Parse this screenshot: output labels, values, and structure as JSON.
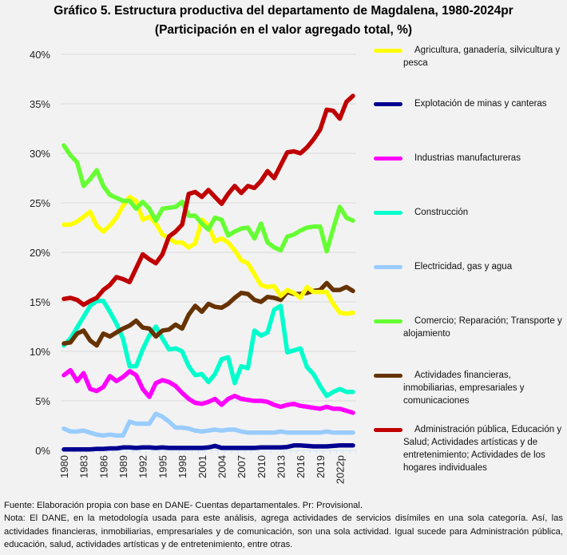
{
  "chart_data": {
    "type": "line",
    "title": "Gráfico 5. Estructura productiva del departamento de Magdalena, 1980-2024pr",
    "subtitle": "(Participación en el valor agregado total, %)",
    "xlabel": "",
    "ylabel": "",
    "ylim": [
      0,
      40
    ],
    "yticks": [
      "0%",
      "5%",
      "10%",
      "15%",
      "20%",
      "25%",
      "30%",
      "35%",
      "40%"
    ],
    "ytick_values": [
      0,
      5,
      10,
      15,
      20,
      25,
      30,
      35,
      40
    ],
    "grid": true,
    "legend_position": "right",
    "x": [
      1980,
      1981,
      1982,
      1983,
      1984,
      1985,
      1986,
      1987,
      1988,
      1989,
      1990,
      1991,
      1992,
      1993,
      1994,
      1995,
      1996,
      1997,
      1998,
      1999,
      2000,
      2001,
      2002,
      2003,
      2004,
      2005,
      2006,
      2007,
      2008,
      2009,
      2010,
      2011,
      2012,
      2013,
      2014,
      2015,
      2016,
      2017,
      2018,
      2019,
      2020,
      2021,
      2022,
      2023,
      2024
    ],
    "xtick_labels": [
      "1980",
      "1983",
      "1986",
      "1989",
      "1992",
      "1995",
      "1998",
      "2001",
      "2004",
      "2007",
      "2010",
      "2013",
      "2016",
      "2019",
      "2022p"
    ],
    "xtick_years": [
      1980,
      1983,
      1986,
      1989,
      1992,
      1995,
      1998,
      2001,
      2004,
      2007,
      2010,
      2013,
      2016,
      2019,
      2022
    ],
    "series": [
      {
        "name": "Agricultura, ganadería, silvicultura y pesca",
        "color": "#ffff00",
        "values": [
          22.8,
          22.8,
          23.1,
          23.6,
          24.1,
          22.7,
          22.1,
          22.7,
          23.5,
          24.7,
          25.6,
          25.2,
          23.3,
          23.6,
          22.9,
          21.8,
          21.4,
          21.0,
          21.0,
          20.5,
          20.9,
          23.3,
          22.7,
          21.1,
          21.4,
          21.0,
          20.2,
          19.2,
          18.9,
          17.8,
          16.7,
          16.5,
          16.6,
          15.6,
          16.2,
          15.9,
          15.4,
          16.5,
          16.0,
          16.0,
          16.0,
          14.8,
          13.9,
          13.8,
          13.9
        ]
      },
      {
        "name": "Explotación de minas y canteras",
        "color": "#000090",
        "values": [
          0.1,
          0.1,
          0.1,
          0.1,
          0.1,
          0.15,
          0.15,
          0.2,
          0.2,
          0.3,
          0.3,
          0.25,
          0.3,
          0.3,
          0.25,
          0.3,
          0.25,
          0.25,
          0.25,
          0.25,
          0.25,
          0.25,
          0.3,
          0.45,
          0.25,
          0.25,
          0.25,
          0.25,
          0.25,
          0.25,
          0.3,
          0.3,
          0.3,
          0.3,
          0.35,
          0.5,
          0.5,
          0.45,
          0.4,
          0.4,
          0.4,
          0.45,
          0.5,
          0.5,
          0.5
        ]
      },
      {
        "name": "Industrias manufactureras",
        "color": "#ff00ff",
        "values": [
          7.6,
          8.1,
          7.0,
          7.8,
          6.2,
          6.0,
          6.4,
          7.5,
          7.0,
          7.4,
          8.0,
          7.6,
          6.2,
          5.4,
          6.8,
          7.1,
          6.9,
          6.5,
          5.8,
          5.2,
          4.8,
          4.7,
          4.9,
          5.2,
          4.6,
          5.2,
          5.5,
          5.2,
          5.1,
          5.0,
          5.0,
          4.9,
          4.6,
          4.4,
          4.6,
          4.7,
          4.5,
          4.4,
          4.3,
          4.2,
          4.4,
          4.2,
          4.2,
          4.0,
          3.8
        ]
      },
      {
        "name": "Construcción",
        "color": "#00ffcc",
        "values": [
          10.6,
          11.3,
          12.4,
          13.5,
          14.6,
          15.1,
          15.1,
          14.0,
          12.8,
          11.3,
          8.5,
          8.5,
          10.2,
          11.6,
          12.5,
          11.3,
          10.2,
          10.3,
          10.0,
          8.5,
          7.6,
          7.7,
          6.9,
          7.7,
          9.2,
          9.4,
          6.8,
          8.5,
          8.3,
          12.1,
          11.6,
          11.9,
          14.2,
          14.6,
          9.9,
          10.1,
          10.3,
          8.4,
          7.7,
          6.5,
          5.5,
          5.9,
          6.2,
          5.9,
          5.9
        ]
      },
      {
        "name": "Electricidad, gas y agua",
        "color": "#99ccff",
        "values": [
          2.2,
          1.9,
          1.9,
          2.0,
          1.8,
          1.6,
          1.5,
          1.6,
          1.5,
          1.5,
          2.9,
          2.7,
          2.7,
          2.7,
          3.7,
          3.4,
          2.9,
          2.3,
          2.3,
          2.2,
          2.0,
          1.9,
          2.0,
          2.1,
          2.0,
          2.1,
          2.1,
          1.9,
          1.8,
          1.8,
          1.8,
          1.8,
          1.8,
          1.9,
          1.8,
          1.8,
          1.8,
          1.8,
          1.8,
          1.8,
          1.9,
          1.8,
          1.8,
          1.8,
          1.8
        ]
      },
      {
        "name": "Comercio; Reparación; Transporte y alojamiento",
        "color": "#66ff33",
        "values": [
          30.8,
          29.8,
          29.1,
          26.7,
          27.4,
          28.3,
          26.7,
          25.8,
          25.5,
          25.2,
          25.2,
          24.4,
          25.1,
          24.4,
          23.2,
          24.4,
          24.5,
          24.6,
          25.1,
          23.7,
          23.7,
          22.9,
          22.3,
          23.5,
          23.3,
          21.7,
          22.1,
          22.4,
          22.5,
          21.4,
          22.9,
          21.0,
          20.5,
          20.2,
          21.6,
          21.8,
          22.2,
          22.5,
          22.6,
          22.6,
          20.1,
          22.4,
          24.6,
          23.5,
          23.2
        ]
      },
      {
        "name": "Actividades financieras, inmobiliarias, empresariales y comunicaciones",
        "color": "#663300",
        "values": [
          10.8,
          10.9,
          11.8,
          12.1,
          11.1,
          10.6,
          11.8,
          11.5,
          11.9,
          12.3,
          12.6,
          13.1,
          12.4,
          12.3,
          11.5,
          12.1,
          12.2,
          12.7,
          12.3,
          13.7,
          14.6,
          14.0,
          14.8,
          14.5,
          14.4,
          14.8,
          15.4,
          15.9,
          15.8,
          15.2,
          15.0,
          15.5,
          15.4,
          15.2,
          16.0,
          15.8,
          15.8,
          15.9,
          16.1,
          16.2,
          16.9,
          16.2,
          16.2,
          16.5,
          16.1
        ]
      },
      {
        "name": "Administración pública, Educación y Salud; Actividades artísticas y de entretenimiento; Actividades de los hogares individuales",
        "color": "#c00000",
        "values": [
          15.3,
          15.4,
          15.2,
          14.7,
          15.1,
          15.4,
          16.2,
          16.7,
          17.5,
          17.3,
          17.0,
          18.4,
          19.8,
          19.3,
          18.9,
          19.8,
          21.6,
          22.1,
          22.8,
          25.9,
          26.1,
          25.6,
          26.3,
          25.6,
          24.9,
          25.9,
          26.7,
          26.0,
          26.7,
          26.5,
          27.2,
          28.2,
          27.5,
          28.8,
          30.1,
          30.2,
          30.0,
          30.6,
          31.4,
          32.4,
          34.4,
          34.3,
          33.5,
          35.2,
          35.8
        ]
      }
    ]
  },
  "legend": [
    {
      "label": "Agricultura, ganadería, silvicultura y pesca",
      "color": "#ffff00"
    },
    {
      "label": "Explotación de minas y canteras",
      "color": "#000090"
    },
    {
      "label": "Industrias manufactureras",
      "color": "#ff00ff"
    },
    {
      "label": "Construcción",
      "color": "#00ffcc"
    },
    {
      "label": "Electricidad, gas y agua",
      "color": "#99ccff"
    },
    {
      "label": "Comercio; Reparación; Transporte y alojamiento",
      "color": "#66ff33"
    },
    {
      "label": "Actividades financieras, inmobiliarias, empresariales y comunicaciones",
      "color": "#663300"
    },
    {
      "label": "Administración pública, Educación y Salud; Actividades artísticas y de entretenimiento; Actividades de los hogares individuales",
      "color": "#c00000"
    }
  ],
  "footer": {
    "source": "Fuente: Elaboración propia con base en DANE- Cuentas departamentales. Pr: Provisional.",
    "note": "Nota: El DANE, en la metodología usada para este análisis, agrega actividades de servicios disímiles en una sola categoría. Así, las actividades financieras, inmobiliarias, empresariales y de comunicación, son una sola actividad. Igual sucede para Administración pública, educación, salud, actividades artísticas y de entretenimiento, entre otras."
  }
}
